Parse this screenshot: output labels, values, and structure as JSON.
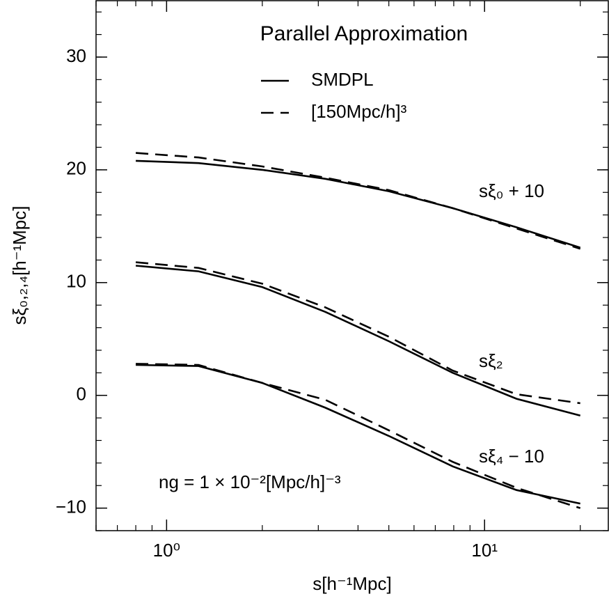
{
  "chart_data": {
    "type": "line",
    "title": "Parallel Approximation",
    "xlabel": "s[h⁻¹Mpc]",
    "ylabel": "sξ₀,₂,₄[h⁻¹Mpc]",
    "log_x": true,
    "x": [
      0.8,
      1.26,
      2,
      3.16,
      5,
      7.94,
      12.6,
      20
    ],
    "xlim": [
      0.6,
      24.5
    ],
    "xticks": [
      {
        "value": 1,
        "label": "10⁰"
      },
      {
        "value": 10,
        "label": "10¹"
      }
    ],
    "ylim": [
      -12,
      35
    ],
    "yticks": [
      {
        "value": -10,
        "label": "−10"
      },
      0,
      10,
      20,
      30
    ],
    "legend_loc": "upper center",
    "legend": [
      {
        "name": "SMDPL",
        "linestyle": "solid"
      },
      {
        "name": "[150Mpc/h]³",
        "linestyle": "dashed"
      }
    ],
    "series": [
      {
        "color": "#000000",
        "linestyle": "solid",
        "values": [
          20.8,
          20.6,
          20.0,
          19.2,
          18.1,
          16.6,
          14.9,
          13.1
        ]
      },
      {
        "color": "#000000",
        "linestyle": "dashed",
        "values": [
          21.5,
          21.1,
          20.3,
          19.3,
          18.2,
          16.6,
          14.8,
          13.0
        ]
      },
      {
        "color": "#000000",
        "linestyle": "solid",
        "values": [
          11.5,
          11.0,
          9.6,
          7.4,
          4.8,
          2.0,
          -0.3,
          -1.8
        ]
      },
      {
        "color": "#000000",
        "linestyle": "dashed",
        "values": [
          11.8,
          11.3,
          9.9,
          7.8,
          5.2,
          2.2,
          0.1,
          -0.7
        ]
      },
      {
        "color": "#000000",
        "linestyle": "solid",
        "values": [
          2.7,
          2.6,
          1.1,
          -1.1,
          -3.6,
          -6.3,
          -8.4,
          -9.6
        ]
      },
      {
        "color": "#000000",
        "linestyle": "dashed",
        "values": [
          2.8,
          2.7,
          1.1,
          -0.4,
          -3.1,
          -5.9,
          -8.2,
          -10.0
        ]
      }
    ],
    "annotations": [
      "sξ₀ + 10",
      "sξ₂",
      "sξ₄ − 10",
      "ng = 1 × 10⁻²[Mpc/h]⁻³"
    ]
  }
}
